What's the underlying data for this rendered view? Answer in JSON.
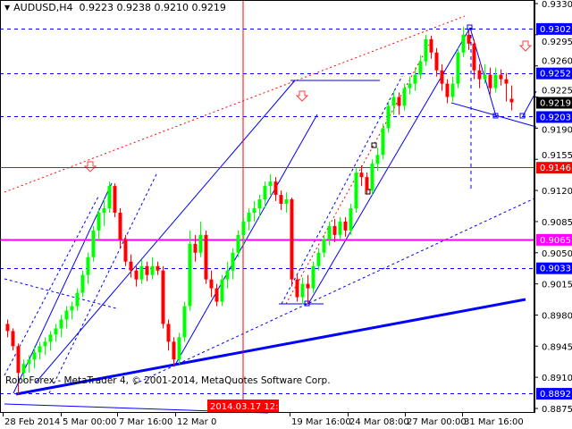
{
  "header": {
    "symbol_label": "AUDUSD,H4",
    "ohlc_text": "0.9223 0.9238 0.9210 0.9219",
    "collapse_icon": "triangle-down-icon"
  },
  "watermark": "RoboForex - MetaTrader 4, © 2001-2014, MetaQuotes Software Corp.",
  "colors": {
    "background": "#ffffff",
    "bull_candle": "#00ff00",
    "bear_candle": "#ff0000",
    "trendline": "#0000ff",
    "level_red": "#ff0000",
    "level_magenta": "#ff00ff",
    "level_blue": "#0000ff"
  },
  "chart_data": {
    "type": "candlestick",
    "symbol": "AUDUSD",
    "timeframe": "H4",
    "ylim": [
      0.8875,
      0.933
    ],
    "grid": false,
    "y_ticks": [
      "0.9330",
      "0.9295",
      "0.9260",
      "0.9225",
      "0.9190",
      "0.9155",
      "0.9120",
      "0.9085",
      "0.9050",
      "0.9015",
      "0.8980",
      "0.8945",
      "0.8910",
      "0.8875"
    ],
    "x_ticks": [
      "28 Feb 2014",
      "5 Mar 00:00",
      "7 Mar 16:00",
      "12 Mar 0",
      "19 Mar 16:00",
      "24 Mar 08:00",
      "27 Mar 00:00",
      "31 Mar 16:00"
    ],
    "crosshair_time_label": "2014.03.17 12:00",
    "current_price": "0.9219",
    "levels": [
      {
        "price": "0.9302",
        "style": "dashed",
        "color": "#0000ff"
      },
      {
        "price": "0.9252",
        "style": "dashed",
        "color": "#0000ff"
      },
      {
        "price": "0.9203",
        "style": "dashed",
        "color": "#0000ff"
      },
      {
        "price": "0.9146",
        "style": "solid",
        "color": "#ff0000"
      },
      {
        "price": "0.9065",
        "style": "solid",
        "color": "#ff00ff"
      },
      {
        "price": "0.9033",
        "style": "dashed",
        "color": "#0000ff"
      },
      {
        "price": "0.8892",
        "style": "dashed",
        "color": "#0000ff"
      }
    ],
    "candles": [
      [
        0.897,
        0.8975,
        0.8955,
        0.8962
      ],
      [
        0.8962,
        0.8965,
        0.894,
        0.8945
      ],
      [
        0.8945,
        0.8948,
        0.889,
        0.8915
      ],
      [
        0.8915,
        0.893,
        0.8905,
        0.8925
      ],
      [
        0.8925,
        0.8935,
        0.8915,
        0.893
      ],
      [
        0.893,
        0.8945,
        0.892,
        0.8938
      ],
      [
        0.8938,
        0.895,
        0.893,
        0.8945
      ],
      [
        0.8945,
        0.8955,
        0.8935,
        0.895
      ],
      [
        0.895,
        0.8962,
        0.894,
        0.8958
      ],
      [
        0.8958,
        0.897,
        0.895,
        0.8965
      ],
      [
        0.8965,
        0.898,
        0.8955,
        0.8975
      ],
      [
        0.8975,
        0.899,
        0.8965,
        0.8985
      ],
      [
        0.8985,
        0.8995,
        0.8975,
        0.899
      ],
      [
        0.899,
        0.901,
        0.8985,
        0.9005
      ],
      [
        0.9005,
        0.903,
        0.9,
        0.9025
      ],
      [
        0.9025,
        0.905,
        0.9015,
        0.9045
      ],
      [
        0.9045,
        0.908,
        0.904,
        0.9075
      ],
      [
        0.9075,
        0.91,
        0.9065,
        0.9095
      ],
      [
        0.9095,
        0.911,
        0.908,
        0.91
      ],
      [
        0.91,
        0.913,
        0.9095,
        0.9125
      ],
      [
        0.9125,
        0.9128,
        0.909,
        0.9095
      ],
      [
        0.9095,
        0.91,
        0.9055,
        0.9065
      ],
      [
        0.9065,
        0.907,
        0.9035,
        0.904
      ],
      [
        0.904,
        0.9048,
        0.9022,
        0.903
      ],
      [
        0.903,
        0.9035,
        0.9012,
        0.902
      ],
      [
        0.902,
        0.9042,
        0.9015,
        0.9035
      ],
      [
        0.9035,
        0.904,
        0.9018,
        0.9025
      ],
      [
        0.9025,
        0.9045,
        0.902,
        0.9035
      ],
      [
        0.9035,
        0.904,
        0.9025,
        0.903
      ],
      [
        0.903,
        0.9035,
        0.8965,
        0.897
      ],
      [
        0.897,
        0.8975,
        0.894,
        0.895
      ],
      [
        0.895,
        0.8955,
        0.8922,
        0.893
      ],
      [
        0.893,
        0.896,
        0.8925,
        0.8955
      ],
      [
        0.8955,
        0.8995,
        0.895,
        0.899
      ],
      [
        0.899,
        0.9075,
        0.8985,
        0.906
      ],
      [
        0.906,
        0.907,
        0.904,
        0.905
      ],
      [
        0.905,
        0.9085,
        0.9045,
        0.907
      ],
      [
        0.907,
        0.9075,
        0.9015,
        0.902
      ],
      [
        0.902,
        0.903,
        0.9,
        0.901
      ],
      [
        0.901,
        0.9015,
        0.899,
        0.8995
      ],
      [
        0.8995,
        0.9025,
        0.899,
        0.902
      ],
      [
        0.902,
        0.904,
        0.901,
        0.903
      ],
      [
        0.903,
        0.9055,
        0.902,
        0.905
      ],
      [
        0.905,
        0.9075,
        0.9045,
        0.907
      ],
      [
        0.907,
        0.909,
        0.906,
        0.9085
      ],
      [
        0.9085,
        0.91,
        0.9075,
        0.9095
      ],
      [
        0.9095,
        0.9108,
        0.9085,
        0.91
      ],
      [
        0.91,
        0.9115,
        0.909,
        0.911
      ],
      [
        0.911,
        0.913,
        0.91,
        0.9125
      ],
      [
        0.9125,
        0.9138,
        0.9115,
        0.913
      ],
      [
        0.913,
        0.9135,
        0.9108,
        0.9115
      ],
      [
        0.9115,
        0.912,
        0.9098,
        0.9105
      ],
      [
        0.9105,
        0.9118,
        0.9095,
        0.911
      ],
      [
        0.911,
        0.9112,
        0.9012,
        0.902
      ],
      [
        0.902,
        0.9025,
        0.8995,
        0.9
      ],
      [
        0.9,
        0.9022,
        0.8992,
        0.9015
      ],
      [
        0.9015,
        0.9025,
        0.8992,
        0.901
      ],
      [
        0.901,
        0.904,
        0.9005,
        0.9035
      ],
      [
        0.9035,
        0.9055,
        0.903,
        0.905
      ],
      [
        0.905,
        0.907,
        0.9045,
        0.9065
      ],
      [
        0.9065,
        0.9085,
        0.9058,
        0.908
      ],
      [
        0.908,
        0.9088,
        0.9062,
        0.907
      ],
      [
        0.907,
        0.909,
        0.9065,
        0.9085
      ],
      [
        0.9085,
        0.909,
        0.9068,
        0.9075
      ],
      [
        0.9075,
        0.9105,
        0.907,
        0.91
      ],
      [
        0.91,
        0.9145,
        0.9095,
        0.914
      ],
      [
        0.914,
        0.9148,
        0.9125,
        0.9135
      ],
      [
        0.9135,
        0.914,
        0.9115,
        0.912
      ],
      [
        0.912,
        0.9155,
        0.9115,
        0.915
      ],
      [
        0.915,
        0.9168,
        0.9142,
        0.916
      ],
      [
        0.916,
        0.9195,
        0.9155,
        0.919
      ],
      [
        0.919,
        0.922,
        0.9185,
        0.9215
      ],
      [
        0.9215,
        0.9232,
        0.9205,
        0.9225
      ],
      [
        0.9225,
        0.923,
        0.9205,
        0.9215
      ],
      [
        0.9215,
        0.924,
        0.921,
        0.9235
      ],
      [
        0.9235,
        0.9248,
        0.9228,
        0.924
      ],
      [
        0.924,
        0.9258,
        0.9232,
        0.925
      ],
      [
        0.925,
        0.9272,
        0.9245,
        0.9265
      ],
      [
        0.9265,
        0.9295,
        0.926,
        0.929
      ],
      [
        0.929,
        0.9294,
        0.9268,
        0.9275
      ],
      [
        0.9275,
        0.928,
        0.9248,
        0.9255
      ],
      [
        0.9255,
        0.9262,
        0.9232,
        0.924
      ],
      [
        0.924,
        0.9245,
        0.9218,
        0.9225
      ],
      [
        0.9225,
        0.9248,
        0.922,
        0.924
      ],
      [
        0.924,
        0.928,
        0.9235,
        0.9275
      ],
      [
        0.9275,
        0.9304,
        0.927,
        0.9295
      ],
      [
        0.9295,
        0.93,
        0.9278,
        0.9285
      ],
      [
        0.9285,
        0.929,
        0.9245,
        0.9255
      ],
      [
        0.9255,
        0.9262,
        0.9235,
        0.9245
      ],
      [
        0.9245,
        0.9262,
        0.924,
        0.925
      ],
      [
        0.925,
        0.9258,
        0.9228,
        0.9235
      ],
      [
        0.9235,
        0.9258,
        0.923,
        0.925
      ],
      [
        0.925,
        0.9256,
        0.9238,
        0.9245
      ],
      [
        0.9245,
        0.9252,
        0.922,
        0.924
      ],
      [
        0.9223,
        0.9238,
        0.921,
        0.9219
      ]
    ]
  }
}
